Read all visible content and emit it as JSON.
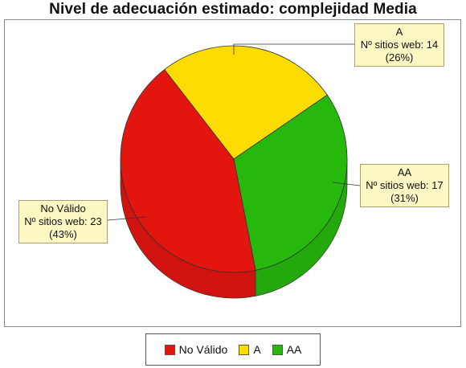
{
  "chart_data": {
    "type": "pie",
    "title": "Nivel de adecuación estimado: complejidad Media",
    "slices": [
      {
        "name": "No Válido",
        "value": 23,
        "percent": "43%",
        "label_prefix": "Nº sitios web:",
        "color": "#e2150f"
      },
      {
        "name": "A",
        "value": 14,
        "percent": "26%",
        "label_prefix": "Nº sitios web:",
        "color": "#fcdc00"
      },
      {
        "name": "AA",
        "value": 17,
        "percent": "31%",
        "label_prefix": "Nº sitios web:",
        "color": "#26b80c"
      }
    ],
    "legend_placement": "bottom-center",
    "three_d": true
  }
}
